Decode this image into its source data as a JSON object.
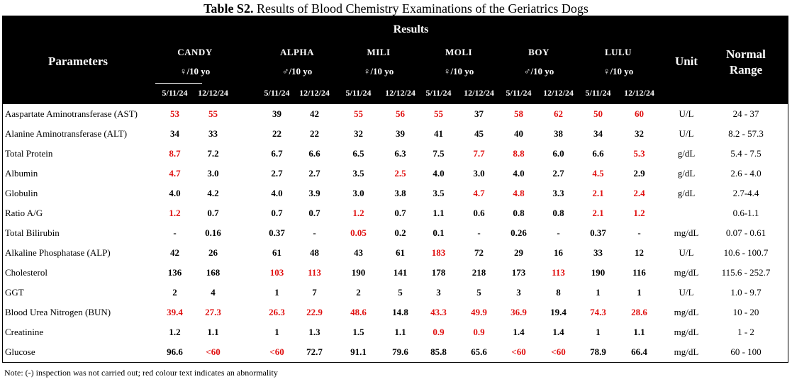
{
  "title": {
    "bold": "Table S2.",
    "rest": " Results of Blood Chemistry Examinations of the Geriatrics Dogs"
  },
  "header": {
    "results": "Results",
    "parameters": "Parameters",
    "unit": "Unit",
    "normal_range_line1": "Normal",
    "normal_range_line2": "Range",
    "dogs": [
      {
        "name": "CANDY",
        "sex": "♀/10 yo",
        "dates": [
          "5/11/24",
          "12/12/24"
        ]
      },
      {
        "name": "ALPHA",
        "sex": "♂/10 yo",
        "dates": [
          "5/11/24",
          "12/12/24"
        ]
      },
      {
        "name": "MILI",
        "sex": "♀/10 yo",
        "dates": [
          "5/11/24",
          "12/12/24"
        ]
      },
      {
        "name": "MOLI",
        "sex": "♀/10 yo",
        "dates": [
          "5/11/24",
          "12/12/24"
        ]
      },
      {
        "name": "BOY",
        "sex": "♂/10 yo",
        "dates": [
          "5/11/24",
          "12/12/24"
        ]
      },
      {
        "name": "LULU",
        "sex": "♀/10 yo",
        "dates": [
          "5/11/24",
          "12/12/24"
        ]
      }
    ]
  },
  "rows": [
    {
      "name": "Aaspartate Aminotransferase (AST)",
      "values": [
        "53",
        "55",
        "39",
        "42",
        "55",
        "56",
        "55",
        "37",
        "58",
        "62",
        "50",
        "60"
      ],
      "abnormal": [
        true,
        true,
        false,
        false,
        true,
        true,
        true,
        false,
        true,
        true,
        true,
        true
      ],
      "unit": "U/L",
      "range": "24 - 37"
    },
    {
      "name": "Alanine Aminotransferase (ALT)",
      "values": [
        "34",
        "33",
        "22",
        "22",
        "32",
        "39",
        "41",
        "45",
        "40",
        "38",
        "34",
        "32"
      ],
      "abnormal": [
        false,
        false,
        false,
        false,
        false,
        false,
        false,
        false,
        false,
        false,
        false,
        false
      ],
      "unit": "U/L",
      "range": "8.2 - 57.3"
    },
    {
      "name": "Total Protein",
      "values": [
        "8.7",
        "7.2",
        "6.7",
        "6.6",
        "6.5",
        "6.3",
        "7.5",
        "7.7",
        "8.8",
        "6.0",
        "6.6",
        "5.3"
      ],
      "abnormal": [
        true,
        false,
        false,
        false,
        false,
        false,
        false,
        true,
        true,
        false,
        false,
        true
      ],
      "unit": "g/dL",
      "range": "5.4 - 7.5"
    },
    {
      "name": "Albumin",
      "values": [
        "4.7",
        "3.0",
        "2.7",
        "2.7",
        "3.5",
        "2.5",
        "4.0",
        "3.0",
        "4.0",
        "2.7",
        "4.5",
        "2.9"
      ],
      "abnormal": [
        true,
        false,
        false,
        false,
        false,
        true,
        false,
        false,
        false,
        false,
        true,
        false
      ],
      "unit": "g/dL",
      "range": "2.6 - 4.0"
    },
    {
      "name": "Globulin",
      "values": [
        "4.0",
        "4.2",
        "4.0",
        "3.9",
        "3.0",
        "3.8",
        "3.5",
        "4.7",
        "4.8",
        "3.3",
        "2.1",
        "2.4"
      ],
      "abnormal": [
        false,
        false,
        false,
        false,
        false,
        false,
        false,
        true,
        true,
        false,
        true,
        true
      ],
      "unit": "g/dL",
      "range": "2.7-4.4"
    },
    {
      "name": "Ratio A/G",
      "values": [
        "1.2",
        "0.7",
        "0.7",
        "0.7",
        "1.2",
        "0.7",
        "1.1",
        "0.6",
        "0.8",
        "0.8",
        "2.1",
        "1.2"
      ],
      "abnormal": [
        true,
        false,
        false,
        false,
        true,
        false,
        false,
        false,
        false,
        false,
        true,
        true
      ],
      "unit": "",
      "range": "0.6-1.1"
    },
    {
      "name": "Total Bilirubin",
      "values": [
        "-",
        "0.16",
        "0.37",
        "-",
        "0.05",
        "0.2",
        "0.1",
        "-",
        "0.26",
        "-",
        "0.37",
        "-"
      ],
      "abnormal": [
        false,
        false,
        false,
        false,
        true,
        false,
        false,
        false,
        false,
        false,
        false,
        false
      ],
      "unit": "mg/dL",
      "range": "0.07 - 0.61"
    },
    {
      "name": "Alkaline Phosphatase (ALP)",
      "values": [
        "42",
        "26",
        "61",
        "48",
        "43",
        "61",
        "183",
        "72",
        "29",
        "16",
        "33",
        "12"
      ],
      "abnormal": [
        false,
        false,
        false,
        false,
        false,
        false,
        true,
        false,
        false,
        false,
        false,
        false
      ],
      "unit": "U/L",
      "range": "10.6 - 100.7"
    },
    {
      "name": "Cholesterol",
      "values": [
        "136",
        "168",
        "103",
        "113",
        "190",
        "141",
        "178",
        "218",
        "173",
        "113",
        "190",
        "116"
      ],
      "abnormal": [
        false,
        false,
        true,
        true,
        false,
        false,
        false,
        false,
        false,
        true,
        false,
        false
      ],
      "unit": "mg/dL",
      "range": "115.6 - 252.7"
    },
    {
      "name": "GGT",
      "values": [
        "2",
        "4",
        "1",
        "7",
        "2",
        "5",
        "3",
        "5",
        "3",
        "8",
        "1",
        "1"
      ],
      "abnormal": [
        false,
        false,
        false,
        false,
        false,
        false,
        false,
        false,
        false,
        false,
        false,
        false
      ],
      "unit": "U/L",
      "range": "1.0 - 9.7"
    },
    {
      "name": "Blood Urea Nitrogen (BUN)",
      "values": [
        "39.4",
        "27.3",
        "26.3",
        "22.9",
        "48.6",
        "14.8",
        "43.3",
        "49.9",
        "36.9",
        "19.4",
        "74.3",
        "28.6"
      ],
      "abnormal": [
        true,
        true,
        true,
        true,
        true,
        false,
        true,
        true,
        true,
        false,
        true,
        true
      ],
      "unit": "mg/dL",
      "range": "10 - 20"
    },
    {
      "name": "Creatinine",
      "values": [
        "1.2",
        "1.1",
        "1",
        "1.3",
        "1.5",
        "1.1",
        "0.9",
        "0.9",
        "1.4",
        "1.4",
        "1",
        "1.1"
      ],
      "abnormal": [
        false,
        false,
        false,
        false,
        false,
        false,
        true,
        true,
        false,
        false,
        false,
        false
      ],
      "unit": "mg/dL",
      "range": "1 - 2"
    },
    {
      "name": "Glucose",
      "values": [
        "96.6",
        "<60",
        "<60",
        "72.7",
        "91.1",
        "79.6",
        "85.8",
        "65.6",
        "<60",
        "<60",
        "78.9",
        "66.4"
      ],
      "abnormal": [
        false,
        true,
        true,
        false,
        false,
        false,
        false,
        false,
        true,
        true,
        false,
        false
      ],
      "unit": "mg/dL",
      "range": "60 - 100"
    }
  ],
  "note": "Note: (-) inspection was not carried out; red colour text indicates an abnormality",
  "colors": {
    "abnormal": "#e01010",
    "header_bg": "#000000",
    "header_text": "#ffffff"
  }
}
